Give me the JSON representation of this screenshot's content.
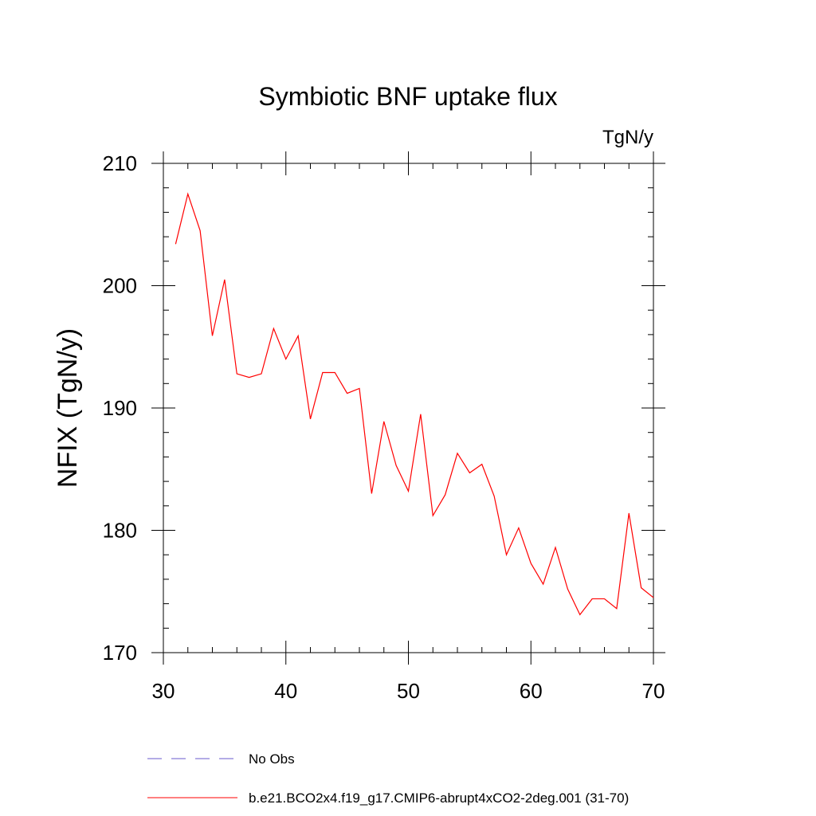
{
  "chart_data": {
    "type": "line",
    "title": "Symbiotic BNF uptake flux",
    "units_label": "TgN/y",
    "xlabel": "",
    "ylabel": "NFIX  (TgN/y)",
    "xlim": [
      30,
      70
    ],
    "ylim": [
      170,
      210
    ],
    "x_ticks": [
      30,
      40,
      50,
      60,
      70
    ],
    "y_ticks": [
      170,
      180,
      190,
      200,
      210
    ],
    "x_minor_step": 2,
    "y_minor_step": 2,
    "grid": false,
    "legend_placement": "bottom",
    "series": [
      {
        "name": "b.e21.BCO2x4.f19_g17.CMIP6-abrupt4xCO2-2deg.001 (31-70)",
        "color": "#ff0000",
        "x": [
          31,
          32,
          33,
          34,
          35,
          36,
          37,
          38,
          39,
          40,
          41,
          42,
          43,
          44,
          45,
          46,
          47,
          48,
          49,
          50,
          51,
          52,
          53,
          54,
          55,
          56,
          57,
          58,
          59,
          60,
          61,
          62,
          63,
          64,
          65,
          66,
          67,
          68,
          69,
          70
        ],
        "y": [
          203.4,
          207.5,
          204.5,
          195.9,
          200.5,
          192.8,
          192.5,
          192.8,
          196.5,
          194.0,
          195.9,
          189.1,
          192.9,
          192.9,
          191.2,
          191.6,
          183.0,
          188.9,
          185.3,
          183.2,
          189.5,
          181.2,
          182.9,
          186.3,
          184.7,
          185.4,
          182.8,
          178.0,
          180.2,
          177.3,
          175.6,
          178.6,
          175.2,
          173.1,
          174.4,
          174.4,
          173.6,
          181.4,
          175.3,
          174.5
        ]
      }
    ],
    "legend": [
      {
        "label": "No Obs",
        "style": "dashed",
        "color": "#6a5acd"
      },
      {
        "label": "b.e21.BCO2x4.f19_g17.CMIP6-abrupt4xCO2-2deg.001 (31-70)",
        "style": "solid",
        "color": "#ff0000"
      }
    ]
  }
}
